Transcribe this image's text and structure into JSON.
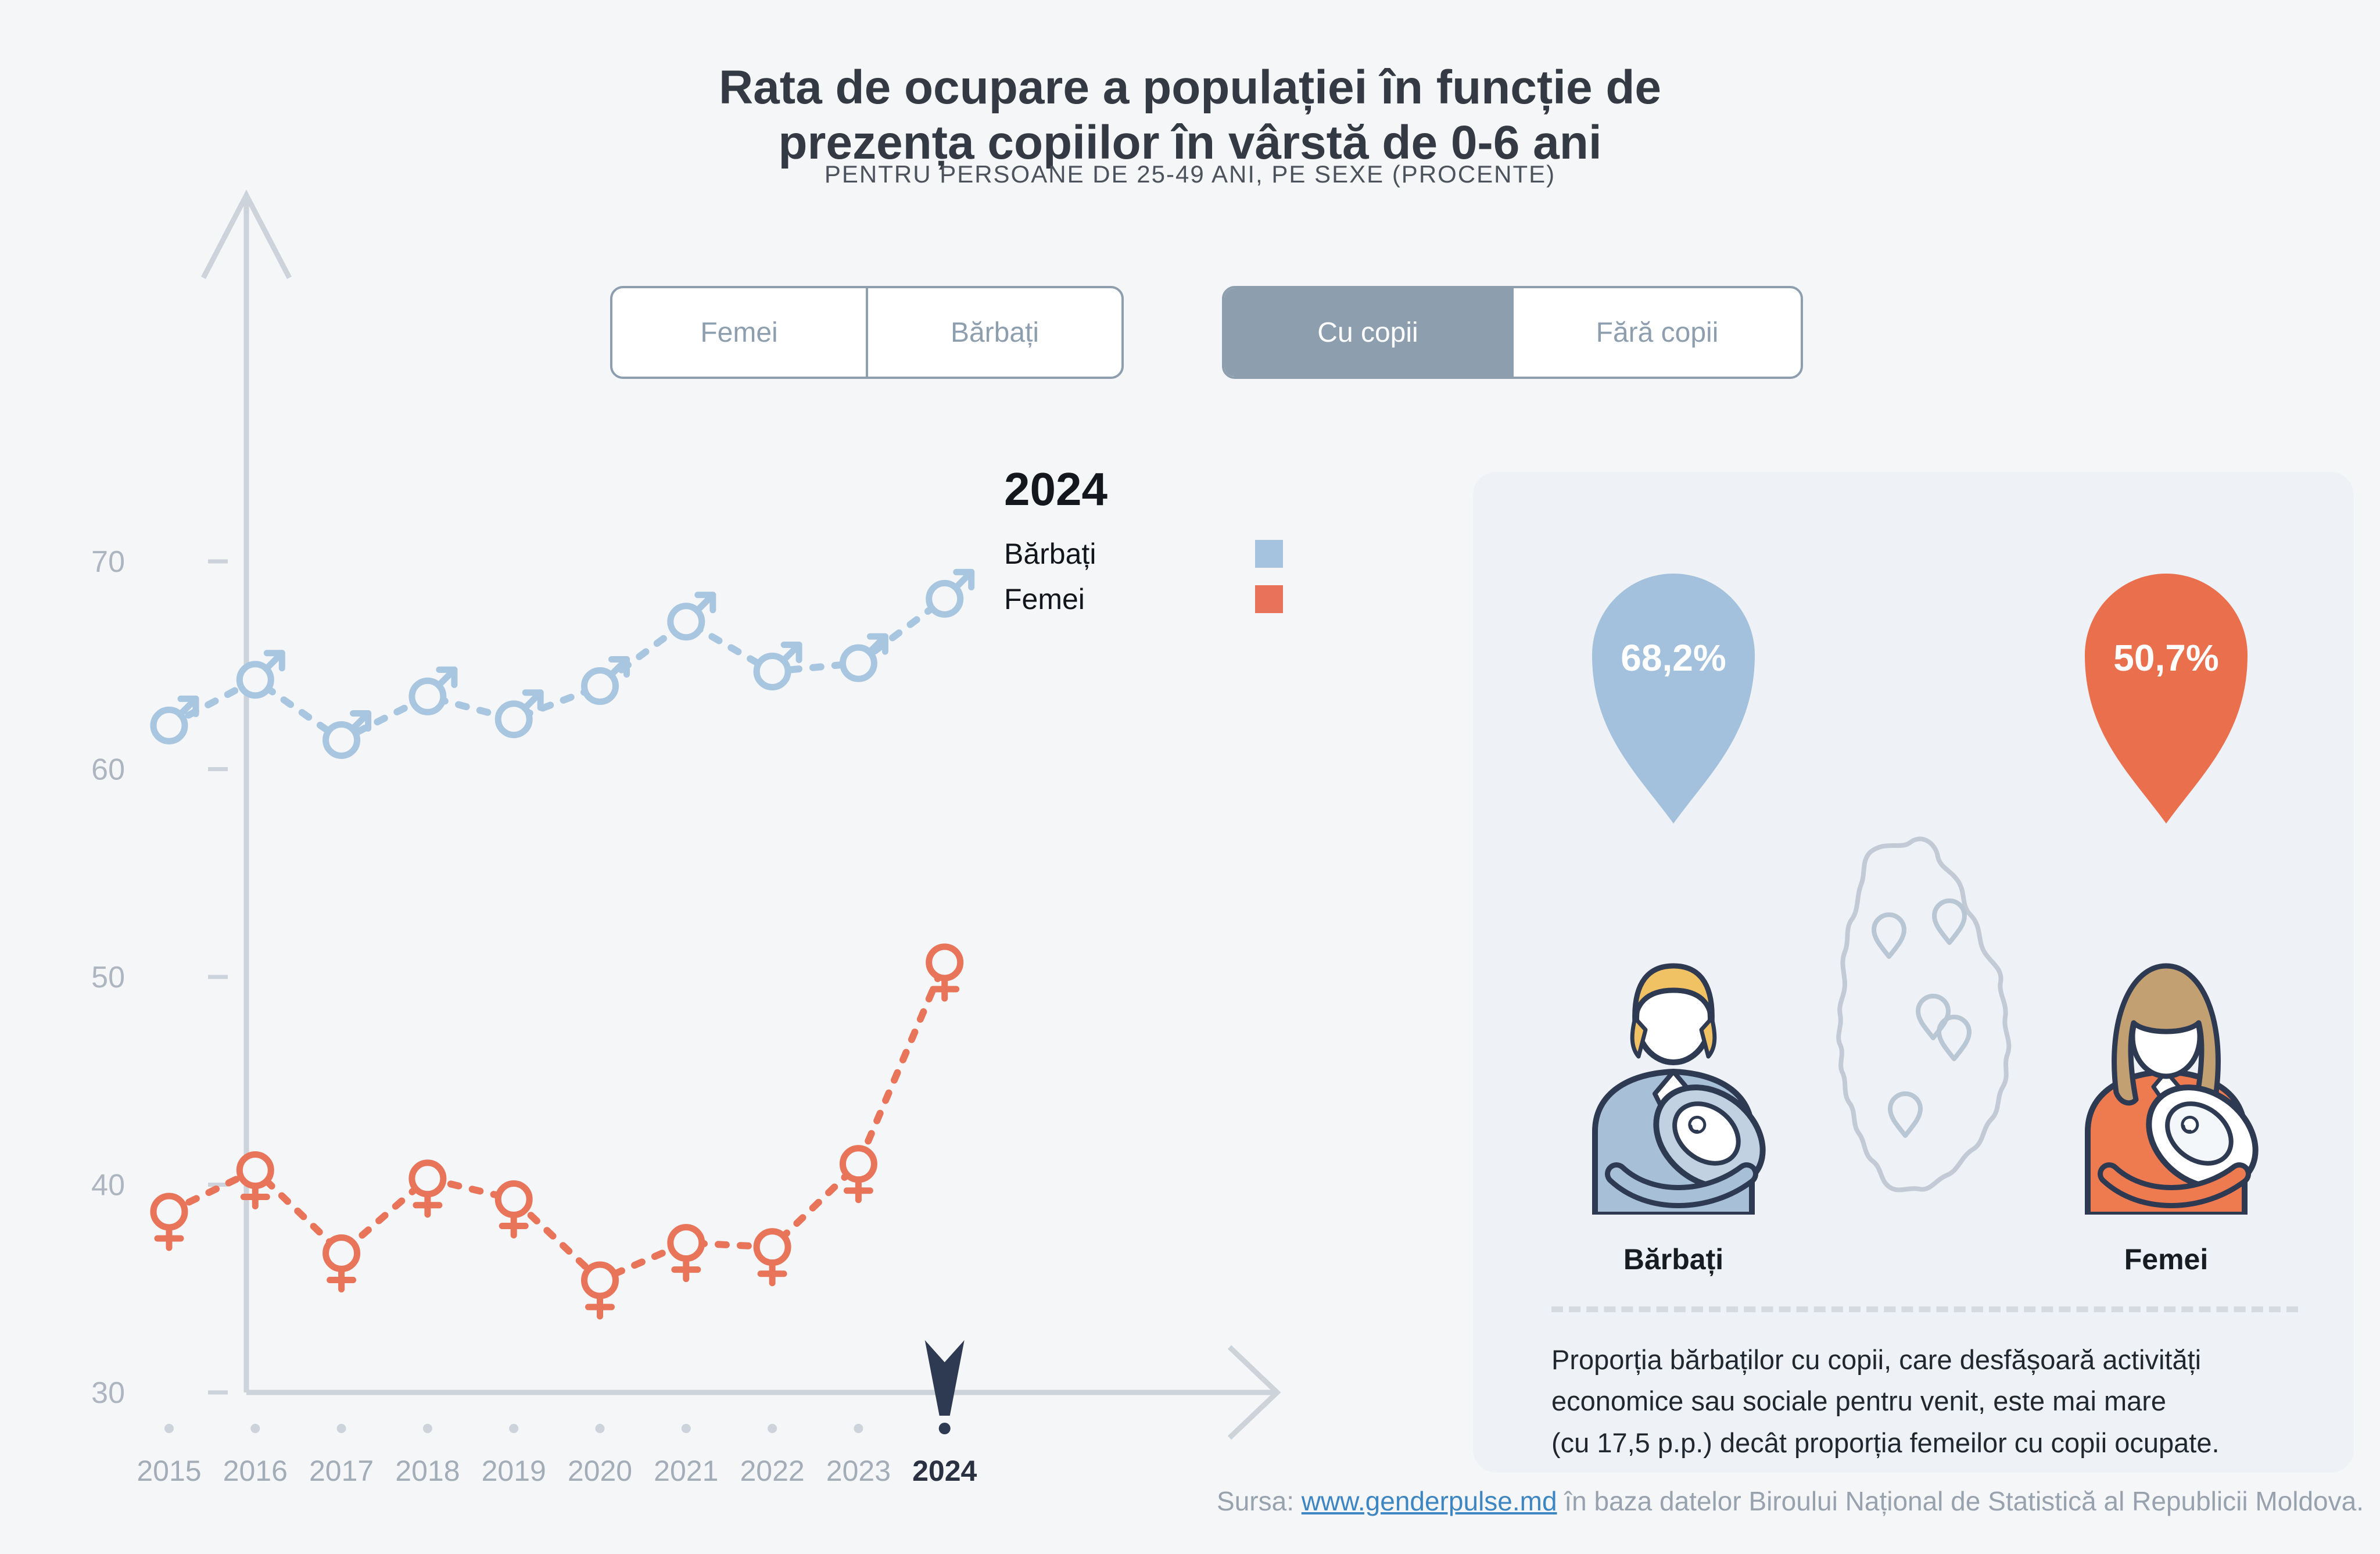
{
  "title": {
    "line1": "Rata de ocupare a populației în funcție de",
    "line2": "prezența copiilor în vârstă de 0-6 ani"
  },
  "subtitle": "PENTRU PERSOANE DE 25-49 ANI, PE SEXE (PROCENTE)",
  "controls": {
    "sex_toggle": {
      "options": [
        {
          "label": "Femei",
          "selected": false
        },
        {
          "label": "Bărbați",
          "selected": false
        }
      ]
    },
    "children_toggle": {
      "options": [
        {
          "label": "Cu copii",
          "selected": true
        },
        {
          "label": "Fără copii",
          "selected": false
        }
      ]
    }
  },
  "legend": {
    "year": "2024",
    "items": [
      {
        "label": "Bărbați",
        "color": "#a5c3de"
      },
      {
        "label": "Femei",
        "color": "#e8735a"
      }
    ]
  },
  "chart_data": {
    "type": "line",
    "title": "Rata de ocupare a populației în funcție de prezența copiilor în vârstă de 0-6 ani",
    "subtitle": "Pentru persoane de 25-49 ani, pe sexe (procente)",
    "x": [
      2015,
      2016,
      2017,
      2018,
      2019,
      2020,
      2021,
      2022,
      2023,
      2024
    ],
    "series": [
      {
        "name": "Bărbați",
        "marker": "male",
        "color": "#a9c6e0",
        "values": [
          62.1,
          64.3,
          61.4,
          63.5,
          62.4,
          64.0,
          67.1,
          64.7,
          65.1,
          68.2
        ]
      },
      {
        "name": "Femei",
        "marker": "female",
        "color": "#e8745a",
        "values": [
          38.7,
          40.7,
          36.7,
          40.3,
          39.3,
          35.4,
          37.2,
          37.0,
          41.0,
          50.7
        ]
      }
    ],
    "yticks": [
      70,
      60,
      50,
      40,
      30
    ],
    "ylim": [
      30,
      72
    ],
    "grid": false,
    "line_style": "dashed",
    "selected_year": 2024
  },
  "panel": {
    "male": {
      "value": "68,2%",
      "label": "Bărbați",
      "pin_color": "#a3c1dc"
    },
    "female": {
      "value": "50,7%",
      "label": "Femei",
      "pin_color": "#ea6f4d"
    },
    "note_lines": [
      "Proporția bărbaților cu copii, care desfășoară activități",
      "economice sau sociale pentru venit, este mai mare",
      "(cu 17,5 p.p.) decât proporția femeilor cu copii ocupate."
    ]
  },
  "footer": {
    "prefix": "Sursa: ",
    "link": "www.genderpulse.md",
    "suffix": " în baza datelor Biroului Național de Statistică al Republicii Moldova."
  },
  "colors": {
    "page_bg": "#f5f6f7",
    "panel_bg": "#eef1f5",
    "axis": "#ccd3db",
    "tick_label": "#adb5c0",
    "year_label": "#a3adb8",
    "year_selected": "#2a3140",
    "navy": "#2e3a52",
    "toggle": "#8d9eae",
    "title": "#343a43",
    "link": "#3d86c2",
    "muted_text": "#98a2ae",
    "divider": "#d4dae0"
  }
}
